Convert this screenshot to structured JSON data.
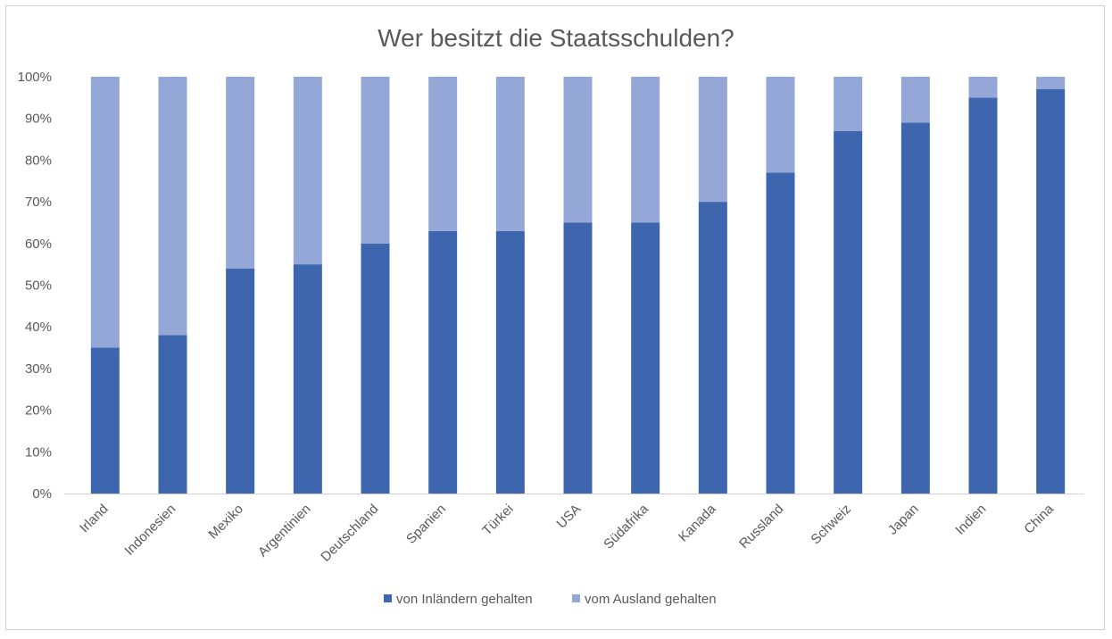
{
  "chart_data": {
    "type": "bar",
    "stacked": true,
    "title": "Wer besitzt die Staatsschulden?",
    "xlabel": "",
    "ylabel": "",
    "ylim": [
      0,
      100
    ],
    "y_ticks": [
      "0%",
      "10%",
      "20%",
      "30%",
      "40%",
      "50%",
      "60%",
      "70%",
      "80%",
      "90%",
      "100%"
    ],
    "grid": false,
    "legend_position": "bottom",
    "categories": [
      "Irland",
      "Indonesien",
      "Mexiko",
      "Argentinien",
      "Deutschland",
      "Spanien",
      "Türkei",
      "USA",
      "Südafrika",
      "Kanada",
      "Russland",
      "Schweiz",
      "Japan",
      "Indien",
      "China"
    ],
    "series": [
      {
        "name": "von Inländern gehalten",
        "color": "#3d66ae",
        "values": [
          35,
          38,
          54,
          55,
          60,
          63,
          63,
          65,
          65,
          70,
          77,
          87,
          89,
          95,
          97
        ]
      },
      {
        "name": "vom Ausland gehalten",
        "color": "#95a7d6",
        "values": [
          65,
          62,
          46,
          45,
          40,
          37,
          37,
          35,
          35,
          30,
          23,
          13,
          11,
          5,
          3
        ]
      }
    ]
  }
}
